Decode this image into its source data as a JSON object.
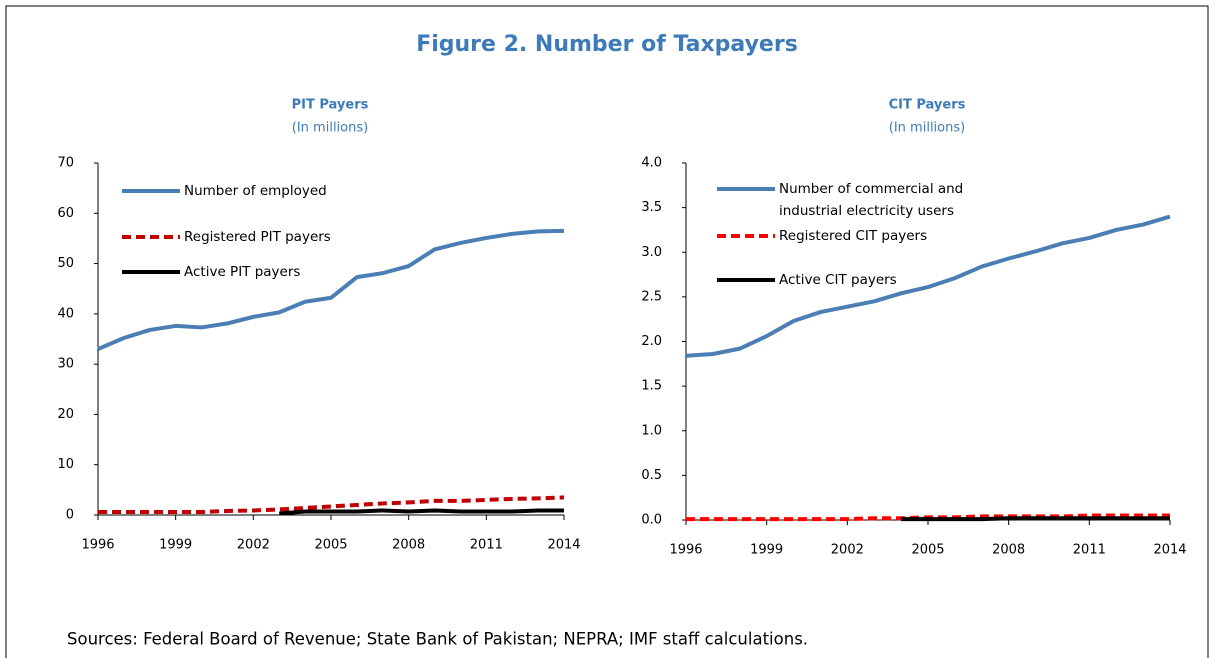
{
  "title": "Figure 2. Number of Taxpayers",
  "note": "Sources: Federal Board of Revenue; State Bank of Pakistan; NEPRA; IMF staff calculations.",
  "chart_data": [
    {
      "type": "line",
      "title": "PIT Payers",
      "subtitle": "(In millions)",
      "x": [
        1996,
        1997,
        1998,
        1999,
        2000,
        2001,
        2002,
        2003,
        2004,
        2005,
        2006,
        2007,
        2008,
        2009,
        2010,
        2011,
        2012,
        2013,
        2014
      ],
      "xlim": [
        1996,
        2014
      ],
      "xticks": [
        1996,
        1999,
        2002,
        2005,
        2008,
        2011,
        2014
      ],
      "ylim": [
        0,
        70
      ],
      "yticks": [
        0,
        10,
        20,
        30,
        40,
        50,
        60,
        70
      ],
      "legend": "upper left",
      "series": [
        {
          "name": "Number of employed",
          "color": "#4a7eb5",
          "dash": false,
          "values": [
            33,
            35.2,
            36.8,
            37.6,
            37.3,
            38.1,
            39.4,
            40.3,
            42.4,
            43.2,
            47.3,
            48.1,
            49.5,
            52.8,
            54.1,
            55.1,
            55.9,
            56.4,
            56.5
          ]
        },
        {
          "name": "Registered PIT payers",
          "color": "#c00000",
          "dash": true,
          "values": [
            0.6,
            0.6,
            0.6,
            0.6,
            0.6,
            0.8,
            0.9,
            1.1,
            1.4,
            1.7,
            2.0,
            2.3,
            2.5,
            2.8,
            2.8,
            3.0,
            3.2,
            3.3,
            3.5
          ]
        },
        {
          "name": "Active PIT payers",
          "color": "#000000",
          "dash": false,
          "values": [
            null,
            null,
            null,
            null,
            null,
            null,
            null,
            0.3,
            0.7,
            0.7,
            0.7,
            0.9,
            0.7,
            0.9,
            0.7,
            0.7,
            0.7,
            0.9,
            0.9
          ]
        }
      ]
    },
    {
      "type": "line",
      "title": "CIT Payers",
      "subtitle": "(In millions)",
      "x": [
        1996,
        1997,
        1998,
        1999,
        2000,
        2001,
        2002,
        2003,
        2004,
        2005,
        2006,
        2007,
        2008,
        2009,
        2010,
        2011,
        2012,
        2013,
        2014
      ],
      "xlim": [
        1996,
        2014
      ],
      "xticks": [
        1996,
        1999,
        2002,
        2005,
        2008,
        2011,
        2014
      ],
      "ylim": [
        0,
        4
      ],
      "yticks": [
        {
          "value": 0,
          "label": "0.0"
        },
        0.5,
        {
          "value": 1,
          "label": "1.0"
        },
        1.5,
        {
          "value": 2,
          "label": "2.0"
        },
        2.5,
        {
          "value": 3,
          "label": "3.0"
        },
        3.5,
        {
          "value": 4,
          "label": "4.0"
        }
      ],
      "legend": "upper left",
      "series": [
        {
          "name": "Number of commercial and industrial electricity users",
          "color": "#4a7eb5",
          "dash": false,
          "values": [
            1.84,
            1.86,
            1.92,
            2.06,
            2.23,
            2.33,
            2.39,
            2.45,
            2.54,
            2.61,
            2.71,
            2.84,
            2.93,
            3.01,
            3.1,
            3.16,
            3.25,
            3.31,
            3.4
          ]
        },
        {
          "name": "Registered CIT payers",
          "color": "#ff0000",
          "dash": true,
          "values": [
            0.01,
            0.01,
            0.01,
            0.01,
            0.01,
            0.01,
            0.01,
            0.02,
            0.02,
            0.03,
            0.03,
            0.04,
            0.04,
            0.04,
            0.04,
            0.05,
            0.05,
            0.05,
            0.05
          ]
        },
        {
          "name": "Active CIT payers",
          "color": "#000000",
          "dash": false,
          "values": [
            null,
            null,
            null,
            null,
            null,
            null,
            null,
            null,
            0.01,
            0.01,
            0.01,
            0.01,
            0.02,
            0.02,
            0.02,
            0.02,
            0.02,
            0.02,
            0.02
          ]
        }
      ]
    }
  ]
}
